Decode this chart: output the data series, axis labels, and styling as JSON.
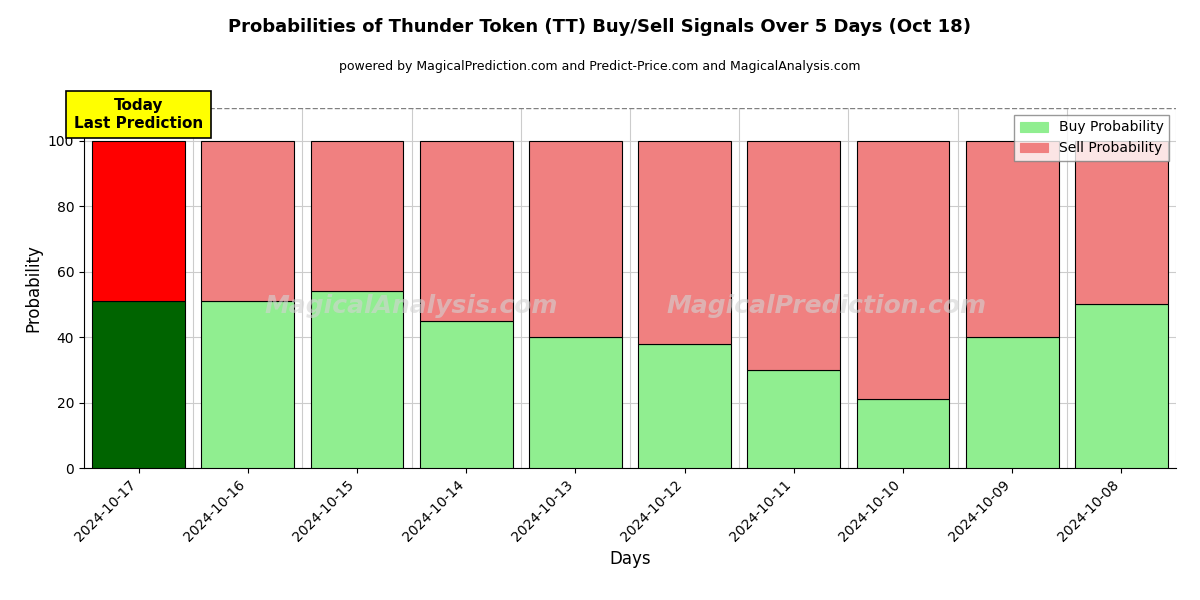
{
  "title": "Probabilities of Thunder Token (TT) Buy/Sell Signals Over 5 Days (Oct 18)",
  "subtitle": "powered by MagicalPrediction.com and Predict-Price.com and MagicalAnalysis.com",
  "watermark_line1": "MagicalAnalysis.com",
  "watermark_line2": "MagicalPrediction.com",
  "xlabel": "Days",
  "ylabel": "Probability",
  "dates": [
    "2024-10-17",
    "2024-10-16",
    "2024-10-15",
    "2024-10-14",
    "2024-10-13",
    "2024-10-12",
    "2024-10-11",
    "2024-10-10",
    "2024-10-09",
    "2024-10-08"
  ],
  "buy_probs": [
    51,
    51,
    54,
    45,
    40,
    38,
    30,
    21,
    40,
    50
  ],
  "sell_probs": [
    49,
    49,
    46,
    55,
    60,
    62,
    70,
    79,
    60,
    50
  ],
  "today_buy_color": "#006400",
  "today_sell_color": "#FF0000",
  "buy_color": "#90EE90",
  "sell_color": "#F08080",
  "today_label": "Today\nLast Prediction",
  "legend_buy": "Buy Probability",
  "legend_sell": "Sell Probability",
  "ylim": [
    0,
    110
  ],
  "dashed_line_y": 110,
  "bar_edgecolor": "black",
  "bar_linewidth": 0.8,
  "background_color": "#ffffff",
  "grid_color": "#cccccc",
  "today_box_color": "#FFFF00",
  "bar_width": 0.85
}
